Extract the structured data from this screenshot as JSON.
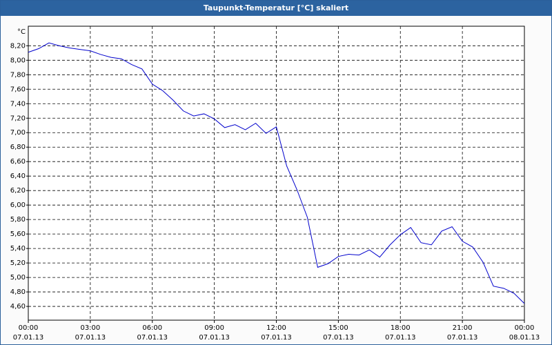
{
  "chart_data": {
    "type": "line",
    "title": "Taupunkt-Temperatur [°C] skaliert",
    "y_unit": "°C",
    "x": [
      0,
      0.5,
      1,
      1.5,
      2,
      2.5,
      3,
      3.5,
      4,
      4.5,
      5,
      5.5,
      6,
      6.5,
      7,
      7.5,
      8,
      8.5,
      9,
      9.5,
      10,
      10.5,
      11,
      11.5,
      12,
      12.5,
      13,
      13.5,
      14,
      14.5,
      15,
      15.5,
      16,
      16.5,
      17,
      17.5,
      18,
      18.5,
      19,
      19.5,
      20,
      20.5,
      21,
      21.5,
      22,
      22.5,
      23,
      23.5,
      24
    ],
    "series": [
      {
        "color": "#0000cc",
        "values": [
          8.11,
          8.16,
          8.24,
          8.2,
          8.17,
          8.15,
          8.13,
          8.08,
          8.04,
          8.02,
          7.94,
          7.88,
          7.67,
          7.58,
          7.45,
          7.3,
          7.23,
          7.26,
          7.19,
          7.07,
          7.11,
          7.04,
          7.13,
          6.99,
          7.08,
          6.54,
          6.21,
          5.83,
          5.14,
          5.19,
          5.29,
          5.32,
          5.31,
          5.38,
          5.28,
          5.45,
          5.59,
          5.69,
          5.48,
          5.45,
          5.64,
          5.7,
          5.5,
          5.42,
          5.21,
          4.88,
          4.85,
          4.78,
          4.64
        ]
      }
    ],
    "xlim": [
      0,
      24
    ],
    "xticks": [
      {
        "value": 0,
        "label": "00:00\n07.01.13"
      },
      {
        "value": 3,
        "label": "03:00\n07.01.13"
      },
      {
        "value": 6,
        "label": "06:00\n07.01.13"
      },
      {
        "value": 9,
        "label": "09:00\n07.01.13"
      },
      {
        "value": 12,
        "label": "12:00\n07.01.13"
      },
      {
        "value": 15,
        "label": "15:00\n07.01.13"
      },
      {
        "value": 18,
        "label": "18:00\n07.01.13"
      },
      {
        "value": 21,
        "label": "21:00\n07.01.13"
      },
      {
        "value": 24,
        "label": "00:00\n08.01.13"
      }
    ],
    "ylim": [
      4.41,
      8.47
    ],
    "yticks": [
      {
        "value": 4.6,
        "label": "4,60"
      },
      {
        "value": 4.8,
        "label": "4,80"
      },
      {
        "value": 5.0,
        "label": "5,00"
      },
      {
        "value": 5.2,
        "label": "5,20"
      },
      {
        "value": 5.4,
        "label": "5,40"
      },
      {
        "value": 5.6,
        "label": "5,60"
      },
      {
        "value": 5.8,
        "label": "5,80"
      },
      {
        "value": 6.0,
        "label": "6,00"
      },
      {
        "value": 6.2,
        "label": "6,20"
      },
      {
        "value": 6.4,
        "label": "6,40"
      },
      {
        "value": 6.6,
        "label": "6,60"
      },
      {
        "value": 6.8,
        "label": "6,80"
      },
      {
        "value": 7.0,
        "label": "7,00"
      },
      {
        "value": 7.2,
        "label": "7,20"
      },
      {
        "value": 7.4,
        "label": "7,40"
      },
      {
        "value": 7.6,
        "label": "7,60"
      },
      {
        "value": 7.8,
        "label": "7,80"
      },
      {
        "value": 8.0,
        "label": "8,00"
      },
      {
        "value": 8.2,
        "label": "8,20"
      }
    ],
    "grid": true
  }
}
